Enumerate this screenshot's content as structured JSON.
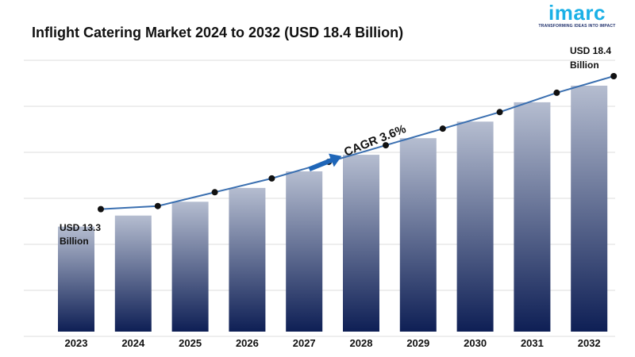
{
  "header": {
    "title": "Inflight Catering Market 2024 to 2032 (USD 18.4 Billion)"
  },
  "logo": {
    "word": "imarc",
    "tagline": "TRANSFORMING IDEAS INTO IMPACT"
  },
  "colors": {
    "bar_top": "#b5bdd0",
    "bar_bottom": "#0e1f55",
    "line": "#3a6fb0",
    "marker": "#111111",
    "arrow": "#1f66b8",
    "logo_accent": "#1ab0e6"
  },
  "chart_data": {
    "type": "bar",
    "title": "Inflight Catering Market 2024 to 2032 (USD 18.4 Billion)",
    "categories": [
      "2023",
      "2024",
      "2025",
      "2026",
      "2027",
      "2028",
      "2029",
      "2030",
      "2031",
      "2032"
    ],
    "values": [
      13.3,
      13.7,
      14.2,
      14.7,
      15.3,
      15.9,
      16.5,
      17.1,
      17.8,
      18.4
    ],
    "ylim": [
      9.5,
      18.4
    ],
    "grid": true,
    "legend": "none",
    "overlay_line": true,
    "annotations": {
      "start_value": "USD 13.3",
      "start_unit": "Billion",
      "end_value": "USD 18.4",
      "end_unit": "Billion",
      "cagr": "CAGR 3.6%"
    }
  }
}
